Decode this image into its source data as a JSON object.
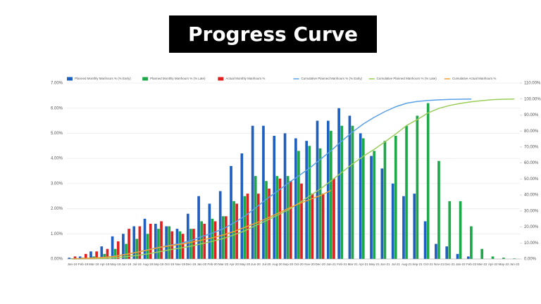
{
  "header": {
    "title": "Progress Curve"
  },
  "chart_data": {
    "type": "bar-line",
    "categories": [
      "Jan-19",
      "Feb-19",
      "Mar-19",
      "Apr-19",
      "May-19",
      "Jun-19",
      "Jul-19",
      "Aug-19",
      "Sep-19",
      "Oct-19",
      "Nov-19",
      "Dec-19",
      "Jan-20",
      "Feb-20",
      "Mar-20",
      "Apr-20",
      "May-20",
      "Jun-20",
      "Jul-20",
      "Aug-20",
      "Sep-20",
      "Oct-20",
      "Nov-20",
      "Dec-20",
      "Jan-21",
      "Feb-21",
      "Mar-21",
      "Apr-21",
      "May-21",
      "Jun-21",
      "Jul-21",
      "Aug-21",
      "Sep-21",
      "Oct-21",
      "Nov-21",
      "Dec-21",
      "Jan-22",
      "Feb-22",
      "Mar-22",
      "Apr-22",
      "May-22",
      "Jun-22"
    ],
    "series": [
      {
        "name": "Planned Monthly Manhours % (% Early)",
        "kind": "bar",
        "color": "#1f5fbf",
        "values": [
          0.05,
          0.1,
          0.3,
          0.5,
          0.9,
          1.0,
          1.3,
          1.6,
          1.4,
          1.3,
          1.2,
          1.8,
          2.5,
          2.2,
          2.7,
          3.7,
          4.2,
          5.3,
          5.3,
          4.9,
          5.0,
          4.8,
          4.7,
          5.5,
          5.5,
          6.0,
          5.7,
          5.0,
          4.1,
          3.6,
          3.0,
          2.5,
          2.6,
          1.5,
          0.6,
          0.5,
          0.2,
          0.1,
          null,
          null,
          null,
          null
        ]
      },
      {
        "name": "Planned Monthly Manhours % (% Late)",
        "kind": "bar",
        "color": "#1fa84a",
        "values": [
          0.02,
          0.05,
          0.1,
          0.2,
          0.4,
          0.6,
          0.8,
          1.0,
          1.2,
          1.3,
          1.1,
          1.2,
          1.5,
          1.6,
          1.7,
          2.3,
          2.5,
          3.3,
          3.1,
          3.3,
          3.3,
          4.3,
          4.5,
          4.4,
          5.1,
          5.3,
          5.3,
          4.8,
          4.3,
          4.7,
          4.9,
          5.3,
          5.7,
          6.2,
          3.9,
          2.3,
          2.3,
          1.3,
          0.4,
          0.1,
          0.05,
          0.02
        ]
      },
      {
        "name": "Actual Monthly Manhours %",
        "kind": "bar",
        "color": "#e02020",
        "values": [
          0.1,
          0.2,
          0.3,
          0.4,
          0.7,
          1.2,
          1.3,
          1.4,
          1.5,
          1.1,
          1.0,
          1.2,
          1.4,
          1.5,
          1.7,
          2.2,
          2.6,
          2.6,
          2.8,
          3.2,
          3.1,
          3.0,
          2.6,
          2.6,
          3.2,
          null,
          null,
          null,
          null,
          null,
          null,
          null,
          null,
          null,
          null,
          null,
          null,
          null,
          null,
          null,
          null,
          null
        ]
      },
      {
        "name": "Cumulative Planned Manhours % (% Early)",
        "kind": "line",
        "axis": "y2",
        "color": "#5aa0e6",
        "values": [
          0.1,
          0.2,
          0.5,
          1,
          1.9,
          2.9,
          4.2,
          5.8,
          7.2,
          8.5,
          9.7,
          11.5,
          14,
          16.2,
          18.9,
          22.6,
          26.8,
          32,
          37.4,
          42.3,
          47.3,
          52,
          56.8,
          62.3,
          67.8,
          73.8,
          79.5,
          84.5,
          88.6,
          92.2,
          95.2,
          97.4,
          98.5,
          99.1,
          99.5,
          99.8,
          99.9,
          100,
          null,
          null,
          null,
          null
        ]
      },
      {
        "name": "Cumulative Planned Manhours % (% Late)",
        "kind": "line",
        "axis": "y2",
        "color": "#9acd5a",
        "values": [
          0,
          0.1,
          0.2,
          0.4,
          0.8,
          1.4,
          2.2,
          3.2,
          4.4,
          5.7,
          6.8,
          8,
          9.5,
          11.1,
          12.8,
          15.1,
          17.6,
          20.9,
          24,
          27.3,
          30.6,
          34.9,
          39.4,
          43.8,
          48.9,
          54.2,
          59.5,
          64.3,
          68.6,
          73.3,
          78.2,
          83.5,
          87.2,
          91.4,
          94.2,
          96,
          97.3,
          98.3,
          99,
          99.6,
          99.9,
          100
        ]
      },
      {
        "name": "Cumulative Actual Manhours %",
        "kind": "line",
        "axis": "y2",
        "color": "#f0a030",
        "values": [
          0.1,
          0.3,
          0.6,
          1,
          1.7,
          2.9,
          4.2,
          5.6,
          7.1,
          8.2,
          9.2,
          10.4,
          11.8,
          13.3,
          15,
          17.2,
          19.8,
          22.4,
          25.2,
          28.4,
          31.5,
          34.5,
          37.1,
          39.7,
          42.9,
          null,
          null,
          null,
          null,
          null,
          null,
          null,
          null,
          null,
          null,
          null,
          null,
          null,
          null,
          null,
          null,
          null
        ]
      }
    ],
    "ylim": [
      0,
      7
    ],
    "yticks": [
      {
        "value": 0,
        "label": "0.00%"
      },
      {
        "value": 1,
        "label": "1.00%"
      },
      {
        "value": 2,
        "label": "2.00%"
      },
      {
        "value": 3,
        "label": "3.00%"
      },
      {
        "value": 4,
        "label": "4.00%"
      },
      {
        "value": 5,
        "label": "5.00%"
      },
      {
        "value": 6,
        "label": "6.00%"
      },
      {
        "value": 7,
        "label": "7.00%"
      }
    ],
    "y2lim": [
      0,
      110
    ],
    "y2ticks": [
      {
        "value": 0,
        "label": "0.00%"
      },
      {
        "value": 10,
        "label": "10.00%"
      },
      {
        "value": 20,
        "label": "20.00%"
      },
      {
        "value": 30,
        "label": "30.00%"
      },
      {
        "value": 40,
        "label": "40.00%"
      },
      {
        "value": 50,
        "label": "50.00%"
      },
      {
        "value": 60,
        "label": "60.00%"
      },
      {
        "value": 70,
        "label": "70.00%"
      },
      {
        "value": 80,
        "label": "80.00%"
      },
      {
        "value": 90,
        "label": "90.00%"
      },
      {
        "value": 100,
        "label": "100.00%"
      },
      {
        "value": 110,
        "label": "110.00%"
      }
    ],
    "grid": true
  }
}
